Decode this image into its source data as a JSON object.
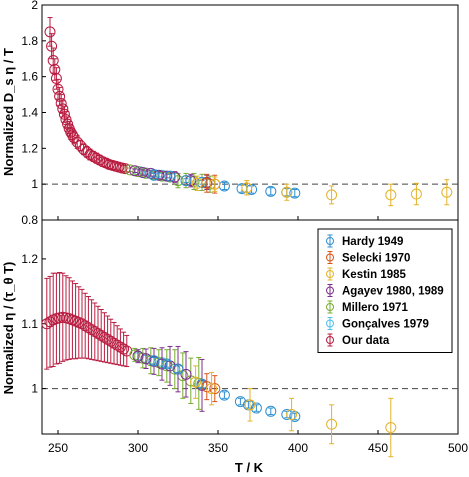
{
  "figure": {
    "xlabel": "T / K",
    "xlim": [
      240,
      500
    ],
    "xticks": [
      "250",
      "300",
      "350",
      "400",
      "450",
      "500"
    ]
  },
  "legend": {
    "placement": "top-right of bottom panel",
    "entries": [
      {
        "label": "Hardy 1949",
        "color": "#2e8fd1"
      },
      {
        "label": "Selecki 1970",
        "color": "#d9541a"
      },
      {
        "label": "Kestin 1985",
        "color": "#e3b32a"
      },
      {
        "label": "Agayev 1980, 1989",
        "color": "#7e2f8e"
      },
      {
        "label": "Millero 1971",
        "color": "#77ac30"
      },
      {
        "label": "Gonçalves 1979",
        "color": "#4dbeee"
      },
      {
        "label": "Our data",
        "color": "#b81b3f"
      }
    ]
  },
  "chart_data": [
    {
      "type": "scatter",
      "panel": "top",
      "ylabel": "Normalized D_s η / T",
      "ylim": [
        0.8,
        2.0
      ],
      "yticks": [
        "0.8",
        "1",
        "1.2",
        "1.4",
        "1.6",
        "1.8",
        "2"
      ],
      "reference_line": {
        "y": 1.0,
        "style": "dashed"
      },
      "series": [
        {
          "name": "Our data",
          "points": [
            [
              245,
              1.85,
              0.08
            ],
            [
              246,
              1.77,
              0.07
            ],
            [
              247,
              1.69,
              0.07
            ],
            [
              248,
              1.64,
              0.06
            ],
            [
              249,
              1.59,
              0.06
            ],
            [
              250,
              1.53,
              0.055
            ],
            [
              251,
              1.49,
              0.05
            ],
            [
              252,
              1.45,
              0.05
            ],
            [
              253,
              1.42,
              0.045
            ],
            [
              254,
              1.39,
              0.045
            ],
            [
              255,
              1.36,
              0.045
            ],
            [
              256,
              1.335,
              0.04
            ],
            [
              257,
              1.31,
              0.04
            ],
            [
              258,
              1.29,
              0.04
            ],
            [
              259,
              1.275,
              0.035
            ],
            [
              260,
              1.26,
              0.035
            ],
            [
              262,
              1.235,
              0.035
            ],
            [
              264,
              1.215,
              0.03
            ],
            [
              266,
              1.195,
              0.03
            ],
            [
              268,
              1.18,
              0.03
            ],
            [
              270,
              1.165,
              0.03
            ],
            [
              272,
              1.155,
              0.028
            ],
            [
              274,
              1.145,
              0.028
            ],
            [
              276,
              1.135,
              0.026
            ],
            [
              278,
              1.125,
              0.026
            ],
            [
              280,
              1.118,
              0.024
            ],
            [
              282,
              1.11,
              0.022
            ],
            [
              284,
              1.105,
              0.022
            ],
            [
              286,
              1.1,
              0.02
            ],
            [
              288,
              1.095,
              0.02
            ],
            [
              290,
              1.09,
              0.018
            ],
            [
              292,
              1.087,
              0.018
            ]
          ]
        },
        {
          "name": "Gonçalves 1979",
          "points": [
            [
              301,
              1.07,
              0.01
            ],
            [
              305,
              1.062,
              0.01
            ],
            [
              310,
              1.055,
              0.01
            ],
            [
              315,
              1.05,
              0.01
            ]
          ]
        },
        {
          "name": "Millero 1971",
          "points": [
            [
              295,
              1.08,
              0.01
            ],
            [
              300,
              1.07,
              0.015
            ],
            [
              305,
              1.06,
              0.015
            ],
            [
              310,
              1.05,
              0.02
            ],
            [
              315,
              1.045,
              0.02
            ],
            [
              320,
              1.04,
              0.02
            ],
            [
              325,
              1.02,
              0.04
            ],
            [
              330,
              1.02,
              0.04
            ],
            [
              335,
              1.015,
              0.045
            ],
            [
              340,
              1.01,
              0.045
            ],
            [
              345,
              1.0,
              0.045
            ]
          ]
        },
        {
          "name": "Agayev 1980, 1989",
          "points": [
            [
              298,
              1.075,
              0.01
            ],
            [
              303,
              1.065,
              0.015
            ],
            [
              308,
              1.06,
              0.015
            ],
            [
              313,
              1.05,
              0.02
            ],
            [
              318,
              1.045,
              0.025
            ],
            [
              323,
              1.04,
              0.03
            ],
            [
              333,
              1.02,
              0.035
            ],
            [
              343,
              1.01,
              0.04
            ]
          ]
        },
        {
          "name": "Hardy 1949",
          "points": [
            [
              310,
              1.05,
              0.01
            ],
            [
              320,
              1.045,
              0.01
            ],
            [
              330,
              1.02,
              0.01
            ],
            [
              340,
              1.01,
              0.01
            ],
            [
              354,
              0.99,
              0.02
            ],
            [
              365,
              0.975,
              0.02
            ],
            [
              371,
              0.97,
              0.02
            ],
            [
              383,
              0.96,
              0.02
            ],
            [
              393,
              0.955,
              0.02
            ],
            [
              398,
              0.95,
              0.02
            ]
          ]
        },
        {
          "name": "Selecki 1970",
          "points": [
            [
              343,
              1.005,
              0.05
            ],
            [
              348,
              1.0,
              0.05
            ]
          ]
        },
        {
          "name": "Kestin 1985",
          "points": [
            [
              337,
              1.005,
              0.04
            ],
            [
              348,
              1.0,
              0.04
            ],
            [
              368,
              0.98,
              0.04
            ],
            [
              393,
              0.955,
              0.045
            ],
            [
              421,
              0.94,
              0.05
            ],
            [
              458,
              0.94,
              0.06
            ],
            [
              474,
              0.945,
              0.06
            ],
            [
              493,
              0.955,
              0.07
            ]
          ]
        }
      ]
    },
    {
      "type": "scatter",
      "panel": "bottom",
      "ylabel": "Normalized η / (τ_θ T)",
      "ylim": [
        0.93,
        1.26
      ],
      "yticks": [
        "1",
        "1.1",
        "1.2"
      ],
      "reference_line": {
        "y": 1.0,
        "style": "dashed"
      },
      "series": [
        {
          "name": "Our data",
          "points": [
            [
              243,
              1.1,
              0.07
            ],
            [
              245,
              1.103,
              0.07
            ],
            [
              247,
              1.106,
              0.072
            ],
            [
              249,
              1.108,
              0.07
            ],
            [
              251,
              1.109,
              0.07
            ],
            [
              253,
              1.11,
              0.068
            ],
            [
              255,
              1.109,
              0.065
            ],
            [
              257,
              1.108,
              0.063
            ],
            [
              259,
              1.106,
              0.06
            ],
            [
              261,
              1.104,
              0.058
            ],
            [
              263,
              1.102,
              0.055
            ],
            [
              265,
              1.1,
              0.053
            ],
            [
              267,
              1.097,
              0.05
            ],
            [
              269,
              1.094,
              0.048
            ],
            [
              271,
              1.091,
              0.046
            ],
            [
              273,
              1.088,
              0.044
            ],
            [
              275,
              1.085,
              0.042
            ],
            [
              277,
              1.082,
              0.04
            ],
            [
              279,
              1.079,
              0.038
            ],
            [
              281,
              1.076,
              0.036
            ],
            [
              283,
              1.073,
              0.034
            ],
            [
              285,
              1.07,
              0.032
            ],
            [
              287,
              1.067,
              0.03
            ],
            [
              289,
              1.064,
              0.028
            ],
            [
              291,
              1.061,
              0.026
            ],
            [
              293,
              1.058,
              0.024
            ]
          ]
        },
        {
          "name": "Gonçalves 1979",
          "points": [
            [
              300,
              1.05,
              0.005
            ],
            [
              305,
              1.046,
              0.005
            ],
            [
              310,
              1.043,
              0.005
            ],
            [
              315,
              1.04,
              0.005
            ]
          ]
        },
        {
          "name": "Millero 1971",
          "points": [
            [
              298,
              1.052,
              0.01
            ],
            [
              303,
              1.047,
              0.015
            ],
            [
              308,
              1.043,
              0.02
            ],
            [
              313,
              1.04,
              0.02
            ],
            [
              318,
              1.035,
              0.025
            ],
            [
              323,
              1.03,
              0.03
            ],
            [
              328,
              1.02,
              0.035
            ],
            [
              333,
              1.012,
              0.035
            ],
            [
              338,
              1.008,
              0.04
            ]
          ]
        },
        {
          "name": "Agayev 1980, 1989",
          "points": [
            [
              300,
              1.05,
              0.01
            ],
            [
              305,
              1.046,
              0.015
            ],
            [
              310,
              1.042,
              0.02
            ],
            [
              315,
              1.038,
              0.025
            ],
            [
              320,
              1.035,
              0.03
            ],
            [
              325,
              1.03,
              0.035
            ],
            [
              330,
              1.022,
              0.035
            ],
            [
              340,
              1.005,
              0.04
            ]
          ]
        },
        {
          "name": "Hardy 1949",
          "points": [
            [
              310,
              1.043,
              0.005
            ],
            [
              318,
              1.038,
              0.005
            ],
            [
              325,
              1.03,
              0.005
            ],
            [
              340,
              1.007,
              0.005
            ],
            [
              354,
              0.99,
              0.005
            ],
            [
              364,
              0.98,
              0.005
            ],
            [
              369,
              0.975,
              0.005
            ],
            [
              374,
              0.97,
              0.005
            ],
            [
              383,
              0.965,
              0.005
            ],
            [
              393,
              0.96,
              0.005
            ],
            [
              398,
              0.957,
              0.005
            ]
          ]
        },
        {
          "name": "Selecki 1970",
          "points": [
            [
              343,
              1.003,
              0.02
            ],
            [
              348,
              1.0,
              0.02
            ]
          ]
        },
        {
          "name": "Kestin 1985",
          "points": [
            [
              336,
              1.01,
              0.025
            ],
            [
              346,
              1.0,
              0.025
            ],
            [
              370,
              0.975,
              0.025
            ],
            [
              396,
              0.96,
              0.025
            ],
            [
              421,
              0.945,
              0.03
            ],
            [
              458,
              0.94,
              0.045
            ]
          ]
        }
      ]
    }
  ]
}
